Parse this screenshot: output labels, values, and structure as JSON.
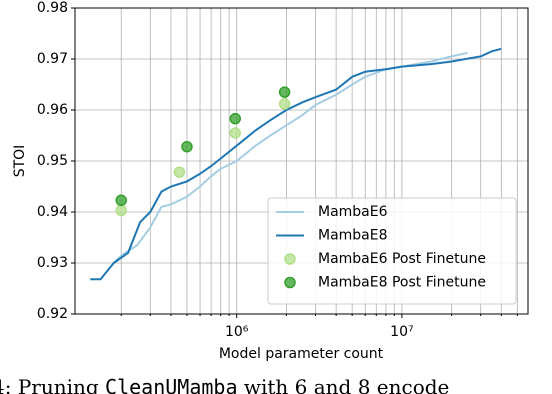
{
  "chart_data": {
    "type": "line",
    "xlabel": "Model parameter count",
    "ylabel": "STOI",
    "xscale": "log",
    "grid": true,
    "legend": "lower right",
    "xlim": [
      105000,
      58000000
    ],
    "ylim": [
      0.92,
      0.98
    ],
    "xticks": [
      {
        "value": 1000000,
        "label": "10⁶"
      },
      {
        "value": 10000000,
        "label": "10⁷"
      }
    ],
    "xminor_ticks": [
      200000,
      300000,
      400000,
      500000,
      600000,
      700000,
      800000,
      900000,
      2000000,
      3000000,
      4000000,
      5000000,
      6000000,
      7000000,
      8000000,
      9000000,
      20000000,
      30000000,
      40000000,
      50000000
    ],
    "yticks": [
      0.92,
      0.93,
      0.94,
      0.95,
      0.96,
      0.97,
      0.98
    ],
    "series": [
      {
        "name": "MambaE6",
        "style": "line",
        "color": "#a6cee3",
        "x": [
          180000,
          200000,
          250000,
          300000,
          350000,
          400000,
          500000,
          600000,
          700000,
          800000,
          1000000,
          1300000,
          1600000,
          2000000,
          2500000,
          3000000,
          4000000,
          5000000,
          6000000,
          8000000,
          10000000,
          15000000,
          20000000,
          25000000
        ],
        "values": [
          0.93,
          0.9315,
          0.9335,
          0.937,
          0.941,
          0.9415,
          0.943,
          0.945,
          0.947,
          0.9485,
          0.95,
          0.953,
          0.955,
          0.957,
          0.959,
          0.961,
          0.963,
          0.965,
          0.9665,
          0.968,
          0.9685,
          0.9695,
          0.9705,
          0.9712
        ]
      },
      {
        "name": "MambaE8",
        "style": "line",
        "color": "#1f78b4",
        "x": [
          130000,
          150000,
          180000,
          220000,
          260000,
          300000,
          350000,
          400000,
          500000,
          600000,
          700000,
          800000,
          1000000,
          1300000,
          1600000,
          2000000,
          2500000,
          3000000,
          4000000,
          5000000,
          6000000,
          8000000,
          10000000,
          15000000,
          20000000,
          30000000,
          35000000,
          40000000
        ],
        "values": [
          0.9268,
          0.9268,
          0.93,
          0.932,
          0.938,
          0.94,
          0.944,
          0.945,
          0.946,
          0.9475,
          0.949,
          0.9505,
          0.953,
          0.956,
          0.958,
          0.96,
          0.9615,
          0.9625,
          0.964,
          0.9665,
          0.9675,
          0.968,
          0.9685,
          0.969,
          0.9695,
          0.9705,
          0.9715,
          0.972
        ]
      },
      {
        "name": "MambaE6 Post Finetune",
        "style": "scatter",
        "color": "#b2df8a",
        "x": [
          200000,
          450000,
          980000,
          1950000
        ],
        "values": [
          0.9403,
          0.9478,
          0.9555,
          0.9612
        ]
      },
      {
        "name": "MambaE8 Post Finetune",
        "style": "scatter",
        "color": "#33a02c",
        "x": [
          200000,
          500000,
          980000,
          1950000
        ],
        "values": [
          0.9423,
          0.9528,
          0.9583,
          0.9635
        ]
      }
    ]
  },
  "caption_parts": [
    "4: Pruning ",
    "CleanUMamba",
    " with 6 and 8 encode"
  ]
}
